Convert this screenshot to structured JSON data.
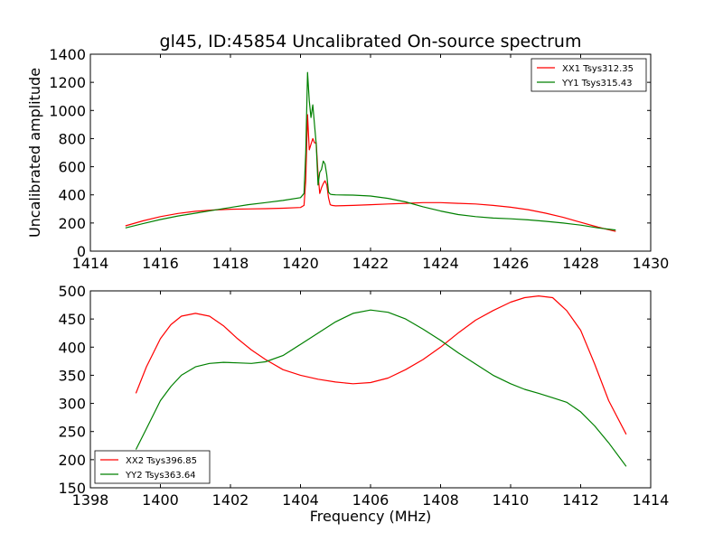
{
  "title": "gl45, ID:45854 Uncalibrated On-source spectrum",
  "colors": {
    "red": "#ff0000",
    "green": "#008000"
  },
  "chart_data": [
    {
      "type": "line",
      "ylabel": "Uncalibrated amplitude",
      "xlim": [
        1414,
        1430
      ],
      "ylim": [
        0,
        1400
      ],
      "xticks": [
        1414,
        1416,
        1418,
        1420,
        1422,
        1424,
        1426,
        1428,
        1430
      ],
      "yticks": [
        0,
        200,
        400,
        600,
        800,
        1000,
        1200,
        1400
      ],
      "legend_position": "top-right",
      "series": [
        {
          "name": "XX1 Tsys312.35",
          "color": "#ff0000",
          "x": [
            1415.0,
            1415.5,
            1416.0,
            1416.5,
            1417.0,
            1417.5,
            1418.0,
            1418.5,
            1419.0,
            1419.5,
            1420.0,
            1420.1,
            1420.15,
            1420.2,
            1420.25,
            1420.3,
            1420.35,
            1420.4,
            1420.45,
            1420.5,
            1420.55,
            1420.6,
            1420.65,
            1420.7,
            1420.75,
            1420.8,
            1420.85,
            1420.9,
            1421.0,
            1421.5,
            1422.0,
            1422.5,
            1423.0,
            1423.5,
            1424.0,
            1424.5,
            1425.0,
            1425.5,
            1426.0,
            1426.5,
            1427.0,
            1427.5,
            1428.0,
            1428.5,
            1429.0
          ],
          "y": [
            180,
            215,
            245,
            268,
            283,
            292,
            298,
            300,
            302,
            305,
            310,
            325,
            500,
            970,
            720,
            760,
            800,
            770,
            770,
            550,
            410,
            450,
            480,
            500,
            470,
            380,
            330,
            325,
            322,
            325,
            330,
            335,
            340,
            345,
            345,
            340,
            335,
            325,
            312,
            295,
            270,
            240,
            205,
            170,
            140
          ]
        },
        {
          "name": "YY1 Tsys315.43",
          "color": "#008000",
          "x": [
            1415.0,
            1415.5,
            1416.0,
            1416.5,
            1417.0,
            1417.5,
            1418.0,
            1418.5,
            1419.0,
            1419.5,
            1420.0,
            1420.1,
            1420.15,
            1420.2,
            1420.25,
            1420.3,
            1420.35,
            1420.4,
            1420.45,
            1420.5,
            1420.55,
            1420.6,
            1420.65,
            1420.7,
            1420.75,
            1420.8,
            1420.85,
            1420.9,
            1421.0,
            1421.5,
            1422.0,
            1422.5,
            1423.0,
            1423.5,
            1424.0,
            1424.5,
            1425.0,
            1425.5,
            1426.0,
            1426.5,
            1427.0,
            1427.5,
            1428.0,
            1428.5,
            1429.0
          ],
          "y": [
            165,
            195,
            225,
            250,
            270,
            290,
            310,
            330,
            345,
            360,
            380,
            410,
            700,
            1270,
            1070,
            950,
            1040,
            900,
            760,
            470,
            560,
            580,
            640,
            620,
            540,
            420,
            405,
            402,
            400,
            398,
            392,
            375,
            350,
            315,
            285,
            260,
            245,
            235,
            230,
            222,
            212,
            200,
            185,
            165,
            150
          ]
        }
      ]
    },
    {
      "type": "line",
      "xlabel": "Frequency (MHz)",
      "xlim": [
        1398,
        1414
      ],
      "ylim": [
        150,
        500
      ],
      "xticks": [
        1398,
        1400,
        1402,
        1404,
        1406,
        1408,
        1410,
        1412,
        1414
      ],
      "yticks": [
        150,
        200,
        250,
        300,
        350,
        400,
        450,
        500
      ],
      "legend_position": "bottom-left",
      "series": [
        {
          "name": "XX2 Tsys396.85",
          "color": "#ff0000",
          "x": [
            1399.3,
            1399.6,
            1400.0,
            1400.3,
            1400.6,
            1401.0,
            1401.4,
            1401.8,
            1402.2,
            1402.6,
            1403.0,
            1403.5,
            1404.0,
            1404.5,
            1405.0,
            1405.5,
            1406.0,
            1406.5,
            1407.0,
            1407.5,
            1408.0,
            1408.5,
            1409.0,
            1409.5,
            1410.0,
            1410.4,
            1410.8,
            1411.2,
            1411.6,
            1412.0,
            1412.4,
            1412.8,
            1413.3
          ],
          "y": [
            318,
            365,
            415,
            440,
            455,
            460,
            455,
            438,
            415,
            395,
            378,
            360,
            350,
            343,
            338,
            335,
            337,
            345,
            360,
            378,
            400,
            425,
            448,
            465,
            480,
            488,
            491,
            488,
            465,
            430,
            370,
            305,
            245
          ]
        },
        {
          "name": "YY2 Tsys363.64",
          "color": "#008000",
          "x": [
            1399.3,
            1399.6,
            1400.0,
            1400.3,
            1400.6,
            1401.0,
            1401.4,
            1401.8,
            1402.2,
            1402.6,
            1403.0,
            1403.5,
            1404.0,
            1404.5,
            1405.0,
            1405.5,
            1406.0,
            1406.5,
            1407.0,
            1407.5,
            1408.0,
            1408.5,
            1409.0,
            1409.5,
            1410.0,
            1410.4,
            1410.8,
            1411.2,
            1411.6,
            1412.0,
            1412.4,
            1412.8,
            1413.3
          ],
          "y": [
            218,
            255,
            305,
            330,
            350,
            365,
            371,
            373,
            372,
            371,
            374,
            385,
            405,
            425,
            445,
            460,
            466,
            462,
            450,
            432,
            412,
            390,
            370,
            350,
            335,
            325,
            318,
            310,
            302,
            285,
            260,
            230,
            188
          ]
        }
      ]
    }
  ]
}
